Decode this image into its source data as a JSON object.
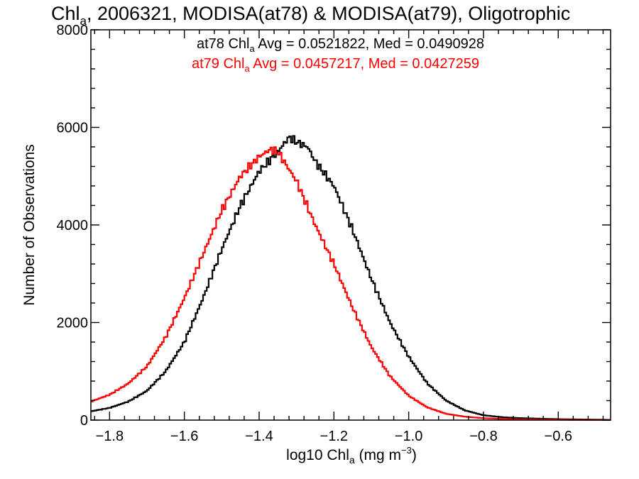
{
  "chart_data": {
    "type": "line",
    "title_main": "Chl",
    "title_sub": "a",
    "title_rest": ", 2006321, MODISA(at78) & MODISA(at79), Oligotrophic",
    "xlabel_main": "log10 Chl",
    "xlabel_sub": "a",
    "xlabel_unit": " (mg m",
    "xlabel_exp": "−3",
    "xlabel_close": ")",
    "ylabel": "Number of Observations",
    "xlim": [
      -1.85,
      -0.46
    ],
    "ylim": [
      0,
      8000
    ],
    "x_ticks": [
      -1.8,
      -1.6,
      -1.4,
      -1.2,
      -1.0,
      -0.8,
      -0.6
    ],
    "x_tick_labels": [
      "−1.8",
      "−1.6",
      "−1.4",
      "−1.2",
      "−1.0",
      "−0.8",
      "−0.6"
    ],
    "y_ticks": [
      0,
      2000,
      4000,
      6000,
      8000
    ],
    "y_tick_labels": [
      "0",
      "2000",
      "4000",
      "6000",
      "8000"
    ],
    "stats": [
      {
        "prefix": "at78 Chl",
        "sub": "a",
        "text": " Avg = 0.0521822, Med = 0.0490928",
        "color": "#000000"
      },
      {
        "prefix": "at79 Chl",
        "sub": "a",
        "text": " Avg = 0.0457217, Med = 0.0427259",
        "color": "#ff0000"
      }
    ],
    "series": [
      {
        "color": "#000000",
        "x": [
          -1.85,
          -1.8,
          -1.75,
          -1.7,
          -1.65,
          -1.6,
          -1.55,
          -1.5,
          -1.45,
          -1.4,
          -1.35,
          -1.32,
          -1.3,
          -1.27,
          -1.25,
          -1.2,
          -1.15,
          -1.1,
          -1.05,
          -1.0,
          -0.95,
          -0.9,
          -0.85,
          -0.8,
          -0.75,
          -0.7,
          -0.65,
          -0.6,
          -0.55,
          -0.5,
          -0.46
        ],
        "y": [
          180,
          250,
          380,
          600,
          1000,
          1600,
          2500,
          3500,
          4400,
          5100,
          5500,
          5800,
          5700,
          5600,
          5300,
          4800,
          3900,
          2900,
          2000,
          1300,
          750,
          400,
          200,
          100,
          60,
          40,
          30,
          20,
          15,
          10,
          5
        ]
      },
      {
        "color": "#ff0000",
        "x": [
          -1.85,
          -1.8,
          -1.75,
          -1.7,
          -1.65,
          -1.6,
          -1.55,
          -1.5,
          -1.45,
          -1.4,
          -1.37,
          -1.35,
          -1.3,
          -1.25,
          -1.2,
          -1.15,
          -1.1,
          -1.05,
          -1.0,
          -0.95,
          -0.9,
          -0.85,
          -0.8,
          -0.75,
          -0.7,
          -0.65,
          -0.6,
          -0.55,
          -0.5,
          -0.46
        ],
        "y": [
          380,
          520,
          750,
          1100,
          1700,
          2500,
          3400,
          4300,
          5000,
          5400,
          5550,
          5500,
          4900,
          4000,
          3200,
          2300,
          1500,
          900,
          500,
          260,
          130,
          70,
          40,
          25,
          15,
          10,
          8,
          5,
          3,
          2
        ]
      }
    ]
  }
}
